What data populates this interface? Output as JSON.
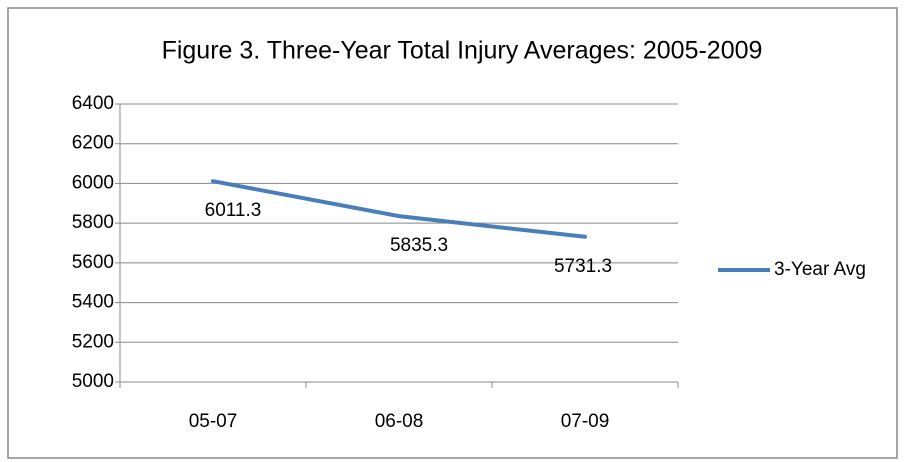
{
  "chart_data": {
    "type": "line",
    "title": "Figure 3.  Three-Year Total Injury Averages: 2005-2009",
    "categories": [
      "05-07",
      "06-08",
      "07-09"
    ],
    "series": [
      {
        "name": "3-Year Avg",
        "color": "#4a7ebb",
        "values": [
          6011.3,
          5835.3,
          5731.3
        ]
      }
    ],
    "ylim": [
      5000,
      6400
    ],
    "yticks": [
      5000,
      5200,
      5400,
      5600,
      5800,
      6000,
      6200,
      6400
    ],
    "grid": true,
    "legend": "right",
    "data_labels": true
  }
}
